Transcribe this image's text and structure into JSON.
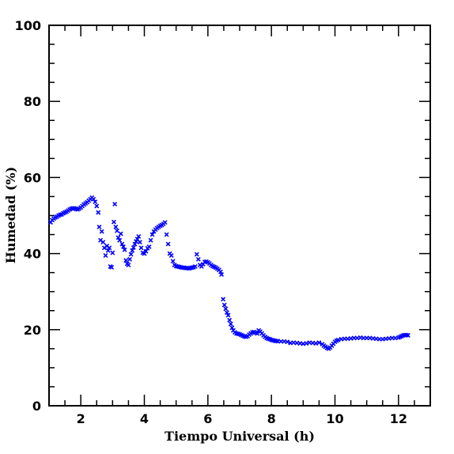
{
  "chart_data": {
    "type": "scatter",
    "title": "",
    "xlabel": "Tiempo Universal (h)",
    "ylabel": "Humedad (%)",
    "xlim": [
      1,
      13
    ],
    "ylim": [
      0,
      100
    ],
    "x_ticks": [
      2,
      4,
      6,
      8,
      10,
      12
    ],
    "y_ticks": [
      0,
      20,
      40,
      60,
      80,
      100
    ],
    "x_tick_labels": [
      "2",
      "4",
      "6",
      "8",
      "10",
      "12"
    ],
    "y_tick_labels": [
      "0",
      "20",
      "40",
      "60",
      "80",
      "100"
    ],
    "grid": false,
    "legend": "none",
    "marker": "x",
    "series": [
      {
        "color": "#0000ff",
        "points": [
          [
            1.05,
            48.2
          ],
          [
            1.1,
            48.8
          ],
          [
            1.15,
            49.2
          ],
          [
            1.2,
            49.5
          ],
          [
            1.25,
            49.7
          ],
          [
            1.3,
            50.0
          ],
          [
            1.35,
            50.2
          ],
          [
            1.4,
            50.3
          ],
          [
            1.45,
            50.6
          ],
          [
            1.5,
            50.8
          ],
          [
            1.55,
            51.0
          ],
          [
            1.6,
            51.3
          ],
          [
            1.65,
            51.6
          ],
          [
            1.7,
            51.8
          ],
          [
            1.75,
            51.9
          ],
          [
            1.8,
            51.9
          ],
          [
            1.85,
            51.7
          ],
          [
            1.9,
            51.6
          ],
          [
            1.95,
            51.8
          ],
          [
            2.0,
            52.1
          ],
          [
            2.05,
            52.5
          ],
          [
            2.1,
            52.9
          ],
          [
            2.15,
            53.2
          ],
          [
            2.2,
            53.5
          ],
          [
            2.25,
            53.9
          ],
          [
            2.3,
            54.3
          ],
          [
            2.35,
            54.7
          ],
          [
            2.4,
            54.3
          ],
          [
            2.45,
            53.6
          ],
          [
            2.5,
            52.5
          ],
          [
            2.55,
            50.8
          ],
          [
            2.58,
            47.0
          ],
          [
            2.62,
            43.5
          ],
          [
            2.66,
            45.8
          ],
          [
            2.7,
            43.0
          ],
          [
            2.74,
            41.5
          ],
          [
            2.78,
            39.5
          ],
          [
            2.82,
            42.0
          ],
          [
            2.86,
            40.8
          ],
          [
            2.9,
            41.5
          ],
          [
            2.93,
            36.6
          ],
          [
            2.97,
            36.4
          ],
          [
            3.0,
            40.2
          ],
          [
            3.04,
            48.3
          ],
          [
            3.07,
            53.0
          ],
          [
            3.1,
            47.0
          ],
          [
            3.14,
            46.0
          ],
          [
            3.18,
            44.2
          ],
          [
            3.22,
            43.5
          ],
          [
            3.26,
            45.2
          ],
          [
            3.3,
            42.5
          ],
          [
            3.34,
            41.8
          ],
          [
            3.38,
            41.0
          ],
          [
            3.42,
            38.2
          ],
          [
            3.46,
            37.3
          ],
          [
            3.5,
            37.0
          ],
          [
            3.54,
            38.5
          ],
          [
            3.58,
            39.8
          ],
          [
            3.62,
            40.8
          ],
          [
            3.66,
            41.6
          ],
          [
            3.7,
            42.5
          ],
          [
            3.74,
            43.2
          ],
          [
            3.78,
            43.8
          ],
          [
            3.82,
            44.5
          ],
          [
            3.86,
            43.0
          ],
          [
            3.9,
            41.5
          ],
          [
            3.95,
            40.2
          ],
          [
            4.0,
            40.0
          ],
          [
            4.05,
            40.6
          ],
          [
            4.1,
            41.4
          ],
          [
            4.15,
            41.8
          ],
          [
            4.2,
            43.5
          ],
          [
            4.25,
            45.0
          ],
          [
            4.3,
            45.8
          ],
          [
            4.35,
            46.3
          ],
          [
            4.4,
            46.7
          ],
          [
            4.45,
            47.0
          ],
          [
            4.5,
            47.3
          ],
          [
            4.55,
            47.5
          ],
          [
            4.6,
            47.8
          ],
          [
            4.65,
            48.2
          ],
          [
            4.7,
            45.0
          ],
          [
            4.75,
            42.5
          ],
          [
            4.8,
            40.0
          ],
          [
            4.85,
            39.5
          ],
          [
            4.9,
            38.0
          ],
          [
            4.95,
            37.0
          ],
          [
            5.0,
            36.7
          ],
          [
            5.05,
            36.6
          ],
          [
            5.1,
            36.5
          ],
          [
            5.15,
            36.4
          ],
          [
            5.2,
            36.3
          ],
          [
            5.25,
            36.3
          ],
          [
            5.3,
            36.2
          ],
          [
            5.35,
            36.2
          ],
          [
            5.4,
            36.1
          ],
          [
            5.45,
            36.2
          ],
          [
            5.5,
            36.3
          ],
          [
            5.55,
            36.4
          ],
          [
            5.6,
            36.6
          ],
          [
            5.65,
            39.8
          ],
          [
            5.7,
            38.5
          ],
          [
            5.75,
            37.0
          ],
          [
            5.8,
            36.6
          ],
          [
            5.85,
            37.2
          ],
          [
            5.9,
            37.8
          ],
          [
            5.95,
            37.9
          ],
          [
            6.0,
            37.7
          ],
          [
            6.05,
            37.4
          ],
          [
            6.1,
            37.0
          ],
          [
            6.15,
            36.7
          ],
          [
            6.2,
            36.5
          ],
          [
            6.25,
            36.3
          ],
          [
            6.3,
            36.0
          ],
          [
            6.35,
            35.7
          ],
          [
            6.4,
            35.2
          ],
          [
            6.43,
            34.5
          ],
          [
            6.48,
            28.0
          ],
          [
            6.52,
            26.5
          ],
          [
            6.56,
            25.5
          ],
          [
            6.6,
            24.5
          ],
          [
            6.64,
            23.8
          ],
          [
            6.68,
            22.5
          ],
          [
            6.72,
            21.5
          ],
          [
            6.76,
            20.5
          ],
          [
            6.8,
            19.8
          ],
          [
            6.85,
            19.3
          ],
          [
            6.9,
            19.0
          ],
          [
            6.95,
            18.9
          ],
          [
            7.0,
            18.8
          ],
          [
            7.05,
            18.6
          ],
          [
            7.1,
            18.4
          ],
          [
            7.15,
            18.2
          ],
          [
            7.2,
            18.1
          ],
          [
            7.25,
            18.3
          ],
          [
            7.3,
            18.7
          ],
          [
            7.35,
            19.0
          ],
          [
            7.4,
            19.3
          ],
          [
            7.45,
            19.4
          ],
          [
            7.5,
            19.2
          ],
          [
            7.55,
            19.0
          ],
          [
            7.6,
            19.8
          ],
          [
            7.65,
            19.5
          ],
          [
            7.7,
            19.0
          ],
          [
            7.75,
            18.5
          ],
          [
            7.8,
            18.1
          ],
          [
            7.85,
            17.8
          ],
          [
            7.9,
            17.6
          ],
          [
            7.95,
            17.5
          ],
          [
            8.0,
            17.3
          ],
          [
            8.05,
            17.2
          ],
          [
            8.1,
            17.1
          ],
          [
            8.15,
            17.0
          ],
          [
            8.2,
            17.0
          ],
          [
            8.3,
            16.9
          ],
          [
            8.4,
            16.9
          ],
          [
            8.5,
            16.8
          ],
          [
            8.6,
            16.5
          ],
          [
            8.7,
            16.6
          ],
          [
            8.8,
            16.5
          ],
          [
            8.9,
            16.4
          ],
          [
            9.0,
            16.3
          ],
          [
            9.1,
            16.4
          ],
          [
            9.2,
            16.6
          ],
          [
            9.3,
            16.5
          ],
          [
            9.4,
            16.4
          ],
          [
            9.5,
            16.6
          ],
          [
            9.6,
            16.2
          ],
          [
            9.65,
            15.8
          ],
          [
            9.7,
            15.5
          ],
          [
            9.75,
            15.2
          ],
          [
            9.8,
            15.0
          ],
          [
            9.85,
            15.3
          ],
          [
            9.9,
            15.8
          ],
          [
            9.95,
            16.3
          ],
          [
            10.0,
            16.8
          ],
          [
            10.05,
            17.1
          ],
          [
            10.1,
            17.3
          ],
          [
            10.2,
            17.5
          ],
          [
            10.3,
            17.6
          ],
          [
            10.4,
            17.6
          ],
          [
            10.5,
            17.7
          ],
          [
            10.6,
            17.8
          ],
          [
            10.7,
            17.8
          ],
          [
            10.8,
            17.9
          ],
          [
            10.9,
            17.8
          ],
          [
            11.0,
            17.8
          ],
          [
            11.1,
            17.8
          ],
          [
            11.2,
            17.7
          ],
          [
            11.3,
            17.6
          ],
          [
            11.4,
            17.5
          ],
          [
            11.5,
            17.5
          ],
          [
            11.6,
            17.6
          ],
          [
            11.7,
            17.7
          ],
          [
            11.8,
            17.8
          ],
          [
            11.9,
            17.8
          ],
          [
            12.0,
            17.9
          ],
          [
            12.05,
            18.1
          ],
          [
            12.1,
            18.3
          ],
          [
            12.15,
            18.5
          ],
          [
            12.2,
            18.6
          ],
          [
            12.25,
            18.6
          ],
          [
            12.3,
            18.5
          ]
        ]
      }
    ]
  }
}
